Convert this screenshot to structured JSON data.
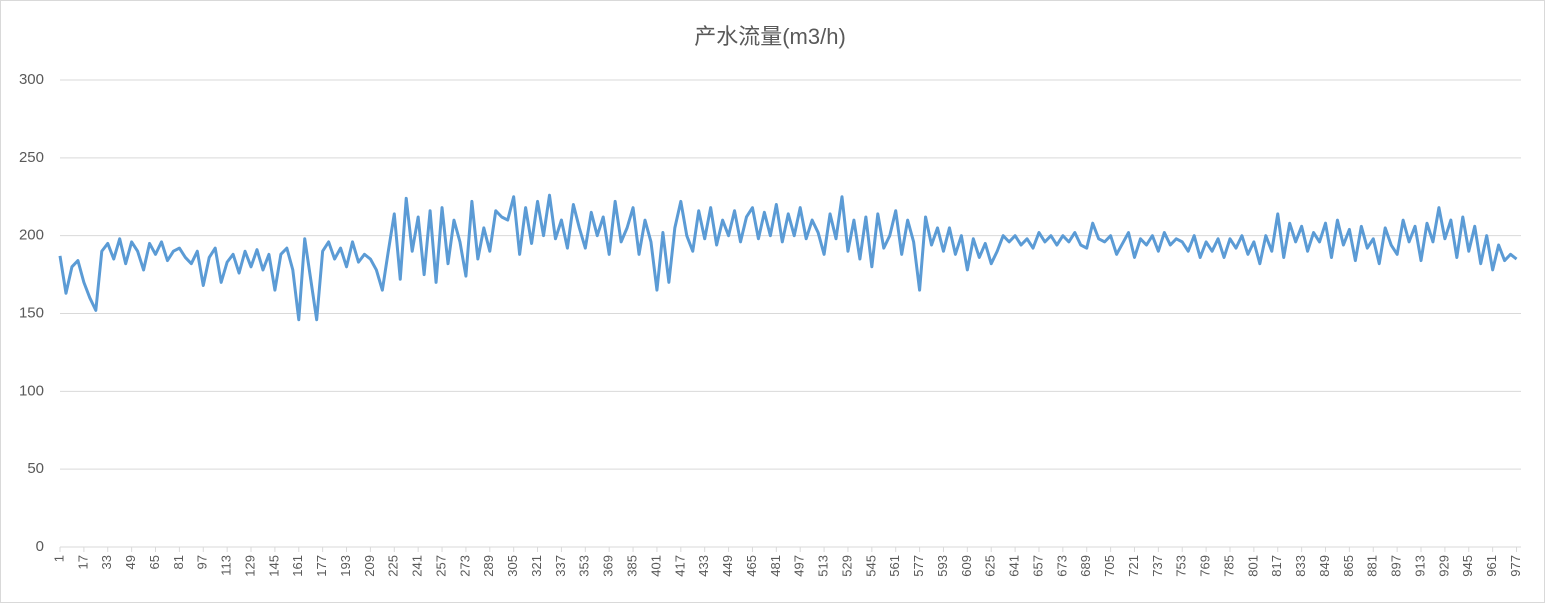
{
  "chart_data": {
    "type": "line",
    "title": "产水流量(m3/h)",
    "x": [
      1,
      5,
      9,
      13,
      17,
      21,
      25,
      29,
      33,
      37,
      41,
      45,
      49,
      53,
      57,
      61,
      65,
      69,
      73,
      77,
      81,
      85,
      89,
      93,
      97,
      101,
      105,
      109,
      113,
      117,
      121,
      125,
      129,
      133,
      137,
      141,
      145,
      149,
      153,
      157,
      161,
      165,
      169,
      173,
      177,
      181,
      185,
      189,
      193,
      197,
      201,
      205,
      209,
      213,
      217,
      221,
      225,
      229,
      233,
      237,
      241,
      245,
      249,
      253,
      257,
      261,
      265,
      269,
      273,
      277,
      281,
      285,
      289,
      293,
      297,
      301,
      305,
      309,
      313,
      317,
      321,
      325,
      329,
      333,
      337,
      341,
      345,
      349,
      353,
      357,
      361,
      365,
      369,
      373,
      377,
      381,
      385,
      389,
      393,
      397,
      401,
      405,
      409,
      413,
      417,
      421,
      425,
      429,
      433,
      437,
      441,
      445,
      449,
      453,
      457,
      461,
      465,
      469,
      473,
      477,
      481,
      485,
      489,
      493,
      497,
      501,
      505,
      509,
      513,
      517,
      521,
      525,
      529,
      533,
      537,
      541,
      545,
      549,
      553,
      557,
      561,
      565,
      569,
      573,
      577,
      581,
      585,
      589,
      593,
      597,
      601,
      605,
      609,
      613,
      617,
      621,
      625,
      629,
      633,
      637,
      641,
      645,
      649,
      653,
      657,
      661,
      665,
      669,
      673,
      677,
      681,
      685,
      689,
      693,
      697,
      701,
      705,
      709,
      713,
      717,
      721,
      725,
      729,
      733,
      737,
      741,
      745,
      749,
      753,
      757,
      761,
      765,
      769,
      773,
      777,
      781,
      785,
      789,
      793,
      797,
      801,
      805,
      809,
      813,
      817,
      821,
      825,
      829,
      833,
      837,
      841,
      845,
      849,
      853,
      857,
      861,
      865,
      869,
      873,
      877,
      881,
      885,
      889,
      893,
      897,
      901,
      905,
      909,
      913,
      917,
      921,
      925,
      929,
      933,
      937,
      941,
      945,
      949,
      953,
      957,
      961,
      965,
      969,
      973,
      977
    ],
    "series": [
      {
        "color": "#5b9bd5",
        "values": [
          187,
          163,
          180,
          184,
          170,
          160,
          152,
          190,
          195,
          185,
          198,
          182,
          196,
          190,
          178,
          195,
          188,
          196,
          184,
          190,
          192,
          186,
          182,
          190,
          168,
          186,
          192,
          170,
          183,
          188,
          176,
          190,
          180,
          191,
          178,
          188,
          165,
          188,
          192,
          178,
          146,
          198,
          172,
          146,
          190,
          196,
          185,
          192,
          180,
          196,
          183,
          188,
          185,
          178,
          165,
          190,
          214,
          172,
          224,
          190,
          212,
          175,
          216,
          170,
          218,
          182,
          210,
          196,
          174,
          222,
          185,
          205,
          190,
          216,
          212,
          210,
          225,
          188,
          218,
          195,
          222,
          200,
          226,
          198,
          210,
          192,
          220,
          205,
          192,
          215,
          200,
          212,
          188,
          222,
          196,
          205,
          218,
          188,
          210,
          196,
          165,
          202,
          170,
          205,
          222,
          200,
          190,
          216,
          198,
          218,
          194,
          210,
          200,
          216,
          196,
          212,
          218,
          198,
          215,
          200,
          220,
          196,
          214,
          200,
          218,
          198,
          210,
          202,
          188,
          214,
          198,
          225,
          190,
          210,
          185,
          212,
          180,
          214,
          192,
          200,
          216,
          188,
          210,
          196,
          165,
          212,
          194,
          205,
          190,
          205,
          188,
          200,
          178,
          198,
          186,
          195,
          182,
          190,
          200,
          196,
          200,
          194,
          198,
          192,
          202,
          196,
          200,
          194,
          200,
          196,
          202,
          194,
          192,
          208,
          198,
          196,
          200,
          188,
          195,
          202,
          186,
          198,
          194,
          200,
          190,
          202,
          194,
          198,
          196,
          190,
          200,
          186,
          196,
          190,
          198,
          186,
          198,
          192,
          200,
          188,
          196,
          182,
          200,
          190,
          214,
          186,
          208,
          196,
          206,
          190,
          202,
          196,
          208,
          186,
          210,
          194,
          204,
          184,
          206,
          192,
          198,
          182,
          205,
          194,
          188,
          210,
          196,
          206,
          184,
          208,
          196,
          218,
          198,
          210,
          186,
          212,
          190,
          206,
          182,
          200,
          178,
          194,
          184,
          188,
          185
        ]
      }
    ],
    "xlim": [
      1,
      980
    ],
    "xticks": [
      1,
      17,
      33,
      49,
      65,
      81,
      97,
      113,
      129,
      145,
      161,
      177,
      193,
      209,
      225,
      241,
      257,
      273,
      289,
      305,
      321,
      337,
      353,
      369,
      385,
      401,
      417,
      433,
      449,
      465,
      481,
      497,
      513,
      529,
      545,
      561,
      577,
      593,
      609,
      625,
      641,
      657,
      673,
      689,
      705,
      721,
      737,
      753,
      769,
      785,
      801,
      817,
      833,
      849,
      865,
      881,
      897,
      913,
      929,
      945,
      961,
      977
    ],
    "ylim": [
      0,
      300
    ],
    "yticks": [
      0,
      50,
      100,
      150,
      200,
      250,
      300
    ],
    "grid": true
  }
}
